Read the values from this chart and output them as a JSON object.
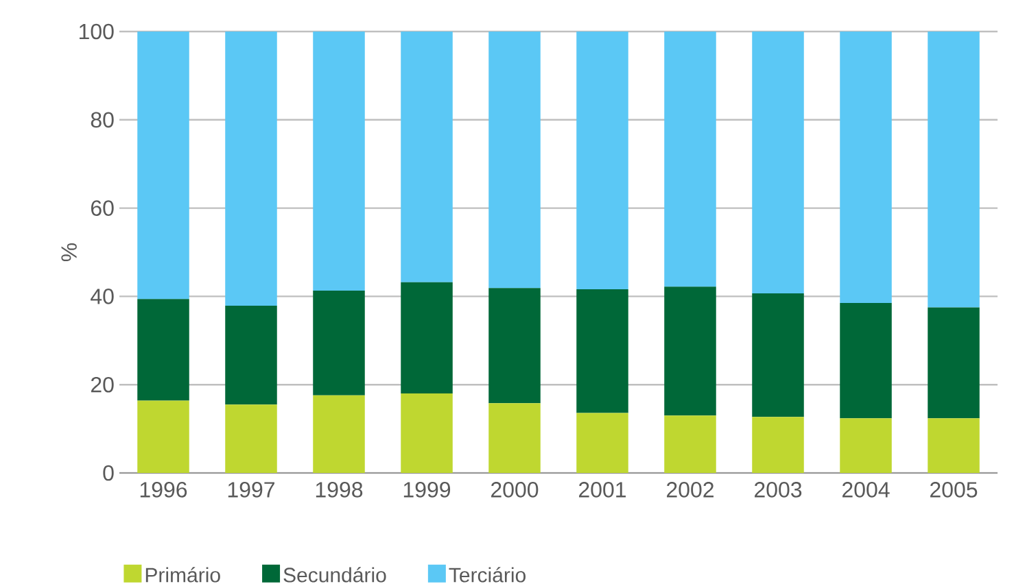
{
  "chart_data": {
    "type": "bar",
    "stacked": true,
    "ylabel": "%",
    "categories": [
      "1996",
      "1997",
      "1998",
      "1999",
      "2000",
      "2001",
      "2002",
      "2003",
      "2004",
      "2005"
    ],
    "series": [
      {
        "name": "Primário",
        "color": "#bfd730",
        "values": [
          16.4,
          15.5,
          17.6,
          18.0,
          15.8,
          13.6,
          13.0,
          12.7,
          12.4,
          12.4
        ]
      },
      {
        "name": "Secundário",
        "color": "#006838",
        "values": [
          23.0,
          22.4,
          23.7,
          25.2,
          26.1,
          28.0,
          29.2,
          28.0,
          26.1,
          25.1
        ]
      },
      {
        "name": "Terciário",
        "color": "#5bc8f5",
        "values": [
          60.6,
          62.1,
          58.7,
          56.8,
          58.1,
          58.4,
          57.8,
          59.3,
          61.5,
          62.5
        ]
      }
    ],
    "ylim": [
      0,
      100
    ],
    "yticks": [
      0,
      20,
      40,
      60,
      80,
      100
    ],
    "grid": "y",
    "legend": "bottom"
  }
}
